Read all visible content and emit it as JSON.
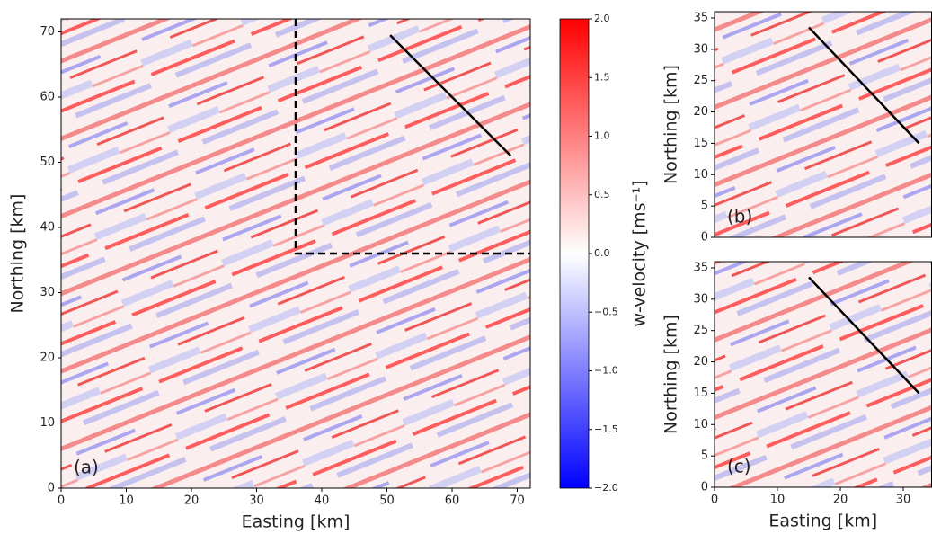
{
  "chart_data": [
    {
      "type": "heatmap",
      "xlabel": "Easting [km]",
      "ylabel": "Northing [km]",
      "annotation": "(a)",
      "xlim": [
        0,
        72
      ],
      "ylim": [
        0,
        72
      ],
      "xticks": [
        0,
        10,
        20,
        30,
        40,
        50,
        60,
        70
      ],
      "yticks": [
        0,
        10,
        20,
        30,
        40,
        50,
        60,
        70
      ],
      "lines": [
        {
          "x": [
            50.5,
            69
          ],
          "y": [
            69.5,
            51
          ],
          "color": "#000000"
        }
      ],
      "box": {
        "x": [
          36,
          36,
          72
        ],
        "y": [
          72,
          36,
          36
        ],
        "color": "#000000"
      },
      "colorbar": {
        "label": "w-velocity [ms⁻¹]",
        "clim": [
          -2,
          2
        ],
        "ticks": [
          {
            "value": -2,
            "label": "−2.0"
          },
          {
            "value": -1.5,
            "label": "−1.5"
          },
          {
            "value": -1,
            "label": "−1.0"
          },
          {
            "value": -0.5,
            "label": "−0.5"
          },
          {
            "value": 0,
            "label": "0.0"
          },
          {
            "value": 0.5,
            "label": "0.5"
          },
          {
            "value": 1,
            "label": "1.0"
          },
          {
            "value": 1.5,
            "label": "1.5"
          },
          {
            "value": 2,
            "label": "2.0"
          }
        ],
        "colors": [
          "#0000ff",
          "#ffffff",
          "#ff0000"
        ]
      }
    },
    {
      "type": "heatmap",
      "ylabel": "Northing [km]",
      "annotation": "(b)",
      "xlim": [
        0,
        34.5
      ],
      "ylim": [
        0,
        36
      ],
      "yticks": [
        0,
        5,
        10,
        15,
        20,
        25,
        30,
        35
      ],
      "lines": [
        {
          "x": [
            15,
            32.5
          ],
          "y": [
            33.5,
            15
          ],
          "color": "#000000"
        }
      ]
    },
    {
      "type": "heatmap",
      "xlabel": "Easting [km]",
      "ylabel": "Northing [km]",
      "annotation": "(c)",
      "xlim": [
        0,
        34.5
      ],
      "ylim": [
        0,
        36
      ],
      "xticks": [
        0,
        10,
        20,
        30
      ],
      "yticks": [
        0,
        5,
        10,
        15,
        20,
        25,
        30,
        35
      ],
      "lines": [
        {
          "x": [
            15,
            32.5
          ],
          "y": [
            33.5,
            15
          ],
          "color": "#000000"
        }
      ]
    }
  ]
}
